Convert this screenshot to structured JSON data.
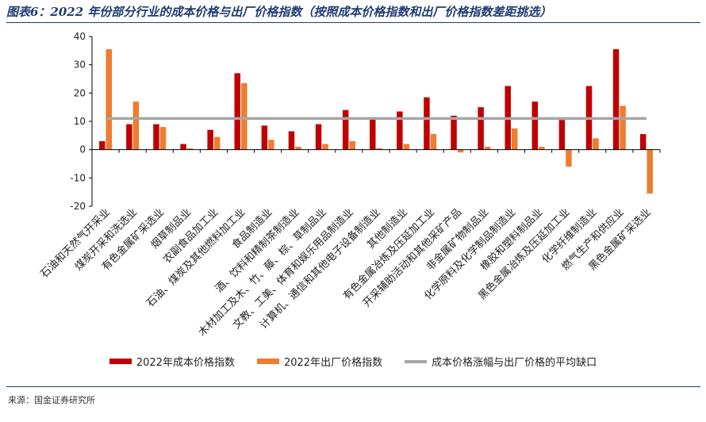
{
  "title": "图表6：2022 年份部分行业的成本价格与出厂价格指数（按照成本价格指数和出厂价格指数差距挑选）",
  "source": "来源：国金证券研究所",
  "colors": {
    "cost": "#c00000",
    "factory": "#ed7d31",
    "gap": "#a6a6a6",
    "axis": "#000000",
    "title": "#1f3b73"
  },
  "chart_data": {
    "type": "bar",
    "categories": [
      "石油和天然气开采业",
      "煤炭开采和洗选业",
      "有色金属矿采选业",
      "烟草制品业",
      "农副食品加工业",
      "石油、煤炭及其他燃料加工业",
      "食品制造业",
      "酒、饮料和精制茶制造业",
      "木材加工及木、竹、藤、棕、草制品业",
      "文教、工美、体育和娱乐用品制造业",
      "计算机、通信和其他电子设备制造业",
      "其他制造业",
      "有色金属冶炼及压延加工业",
      "开采辅助活动和其他采矿产品",
      "非金属矿物制品业",
      "化学原料及化学制品制造业",
      "橡胶和塑料制品业",
      "黑色金属冶炼及压延加工业",
      "化学纤维制造业",
      "燃气生产和供应业",
      "黑色金属矿采选业"
    ],
    "series": [
      {
        "name": "2022年成本价格指数",
        "values": [
          3,
          9,
          9,
          2,
          7,
          27,
          8.5,
          6.5,
          9,
          14,
          11.5,
          13.5,
          18.5,
          12,
          15,
          22.5,
          17,
          10.5,
          22.5,
          35.5,
          5.5
        ]
      },
      {
        "name": "2022年出厂价格指数",
        "values": [
          35.5,
          17,
          8,
          0.5,
          4.5,
          23.5,
          3.5,
          1,
          2,
          3,
          0.5,
          2,
          5.5,
          -1,
          1,
          7.5,
          1,
          -6,
          4,
          15.5,
          -15.5
        ]
      }
    ],
    "reference_line": {
      "name": "成本价格涨幅与出厂价格的平均缺口",
      "value": 11
    },
    "ylim": [
      -20,
      40
    ],
    "yticks": [
      -20,
      -10,
      0,
      10,
      20,
      30,
      40
    ],
    "grid": false,
    "legend_position": "bottom"
  }
}
